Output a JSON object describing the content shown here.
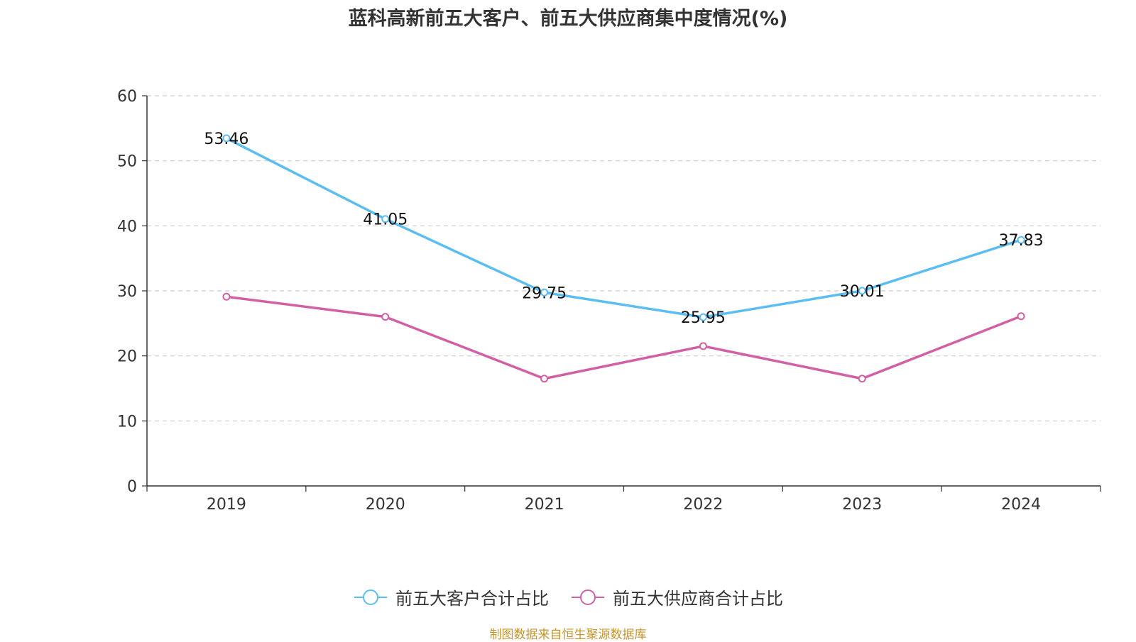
{
  "chart_data": {
    "type": "line",
    "title": "蓝科高新前五大客户、前五大供应商集中度情况(%)",
    "categories": [
      "2019",
      "2020",
      "2021",
      "2022",
      "2023",
      "2024"
    ],
    "ylim": [
      0,
      60
    ],
    "yticks": [
      "0",
      "10",
      "20",
      "30",
      "40",
      "50",
      "60"
    ],
    "grid": true,
    "legend_position": "bottom",
    "series": [
      {
        "name": "前五大客户合计占比",
        "color": "#5bbdf2",
        "values": [
          53.46,
          41.05,
          29.75,
          25.95,
          30.01,
          37.83
        ],
        "labels": [
          "53.46",
          "41.05",
          "29.75",
          "25.95",
          "30.01",
          "37.83"
        ]
      },
      {
        "name": "前五大供应商合计占比",
        "color": "#d260a4",
        "values": [
          29.1,
          26.0,
          16.5,
          21.5,
          16.5,
          26.1
        ],
        "labels": []
      }
    ]
  },
  "source": "制图数据来自恒生聚源数据库"
}
